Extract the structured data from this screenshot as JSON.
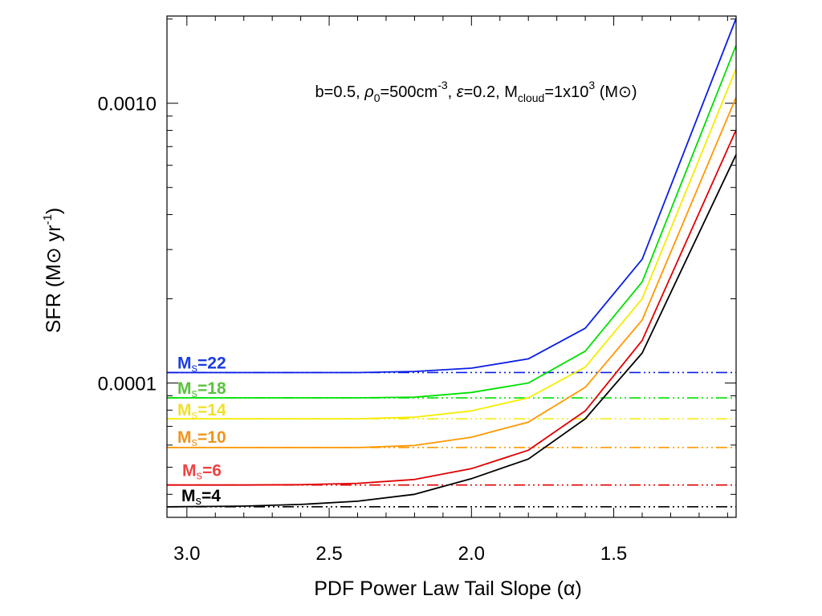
{
  "chart_data": {
    "type": "line",
    "title": "",
    "xlabel": "PDF Power Law Tail Slope (α)",
    "ylabel": "SFR (M⊙ yr⁻¹)",
    "xscale": "linear",
    "yscale": "log",
    "xlim": [
      3.07,
      1.07
    ],
    "ylim": [
      3.31e-05,
      0.00205
    ],
    "x_inverted": true,
    "xticks": [
      3.0,
      2.5,
      2.0,
      1.5
    ],
    "xtick_labels": [
      "3.0",
      "2.5",
      "2.0",
      "1.5"
    ],
    "yticks_major": [
      0.0001,
      0.001
    ],
    "ytick_labels": [
      "0.0001",
      "0.0010"
    ],
    "x": [
      3.07,
      2.8,
      2.6,
      2.4,
      2.2,
      2.0,
      1.8,
      1.6,
      1.4,
      1.07
    ],
    "annotation": {
      "prefix": "b=0.5, ",
      "rho_sym": "ρ",
      "rho_sub": "0",
      "rho_val": "=500cm",
      "rho_exp": "-3",
      "sep1": ", ",
      "eps_sym": "ε",
      "eps_val": "=0.2, M",
      "mass_sub": "cloud",
      "mass_val": "=1x10",
      "mass_exp": "3",
      "unit": " (M⊙)"
    },
    "series": [
      {
        "name": "M",
        "sub": "s",
        "value_label": "=22",
        "mach": 22,
        "color": "#0a1ee6",
        "label_color": "#1a3ce0",
        "baseline": 0.000109,
        "values": [
          0.000109,
          0.000109,
          0.000109,
          0.000109,
          0.00011,
          0.000113,
          0.000122,
          0.000157,
          0.000277,
          0.00201
        ]
      },
      {
        "name": "M",
        "sub": "s",
        "value_label": "=18",
        "mach": 18,
        "color": "#00e000",
        "label_color": "#5ac23c",
        "baseline": 8.85e-05,
        "values": [
          8.85e-05,
          8.85e-05,
          8.85e-05,
          8.85e-05,
          8.9e-05,
          9.25e-05,
          0.0001,
          0.00013,
          0.00023,
          0.00161
        ]
      },
      {
        "name": "M",
        "sub": "s",
        "value_label": "=14",
        "mach": 14,
        "color": "#f5ec00",
        "label_color": "#f0e030",
        "baseline": 7.45e-05,
        "values": [
          7.45e-05,
          7.45e-05,
          7.45e-05,
          7.45e-05,
          7.55e-05,
          7.95e-05,
          8.85e-05,
          0.000114,
          0.0002,
          0.00133
        ]
      },
      {
        "name": "M",
        "sub": "s",
        "value_label": "=10",
        "mach": 10,
        "color": "#ff9800",
        "label_color": "#f0941c",
        "baseline": 5.88e-05,
        "values": [
          5.88e-05,
          5.88e-05,
          5.88e-05,
          5.88e-05,
          5.98e-05,
          6.4e-05,
          7.25e-05,
          9.65e-05,
          0.000168,
          0.00105
        ]
      },
      {
        "name": "M",
        "sub": "s",
        "value_label": "=6",
        "mach": 6,
        "color": "#e00000",
        "label_color": "#ee4444",
        "baseline": 4.32e-05,
        "values": [
          4.32e-05,
          4.32e-05,
          4.33e-05,
          4.38e-05,
          4.52e-05,
          4.94e-05,
          5.75e-05,
          7.95e-05,
          0.000142,
          0.000803
        ]
      },
      {
        "name": "M",
        "sub": "s",
        "value_label": "=4",
        "mach": 4,
        "color": "#000000",
        "label_color": "#000000",
        "baseline": 3.61e-05,
        "values": [
          3.61e-05,
          3.63e-05,
          3.68e-05,
          3.78e-05,
          4e-05,
          4.55e-05,
          5.35e-05,
          7.45e-05,
          0.000128,
          0.000655
        ]
      }
    ]
  }
}
